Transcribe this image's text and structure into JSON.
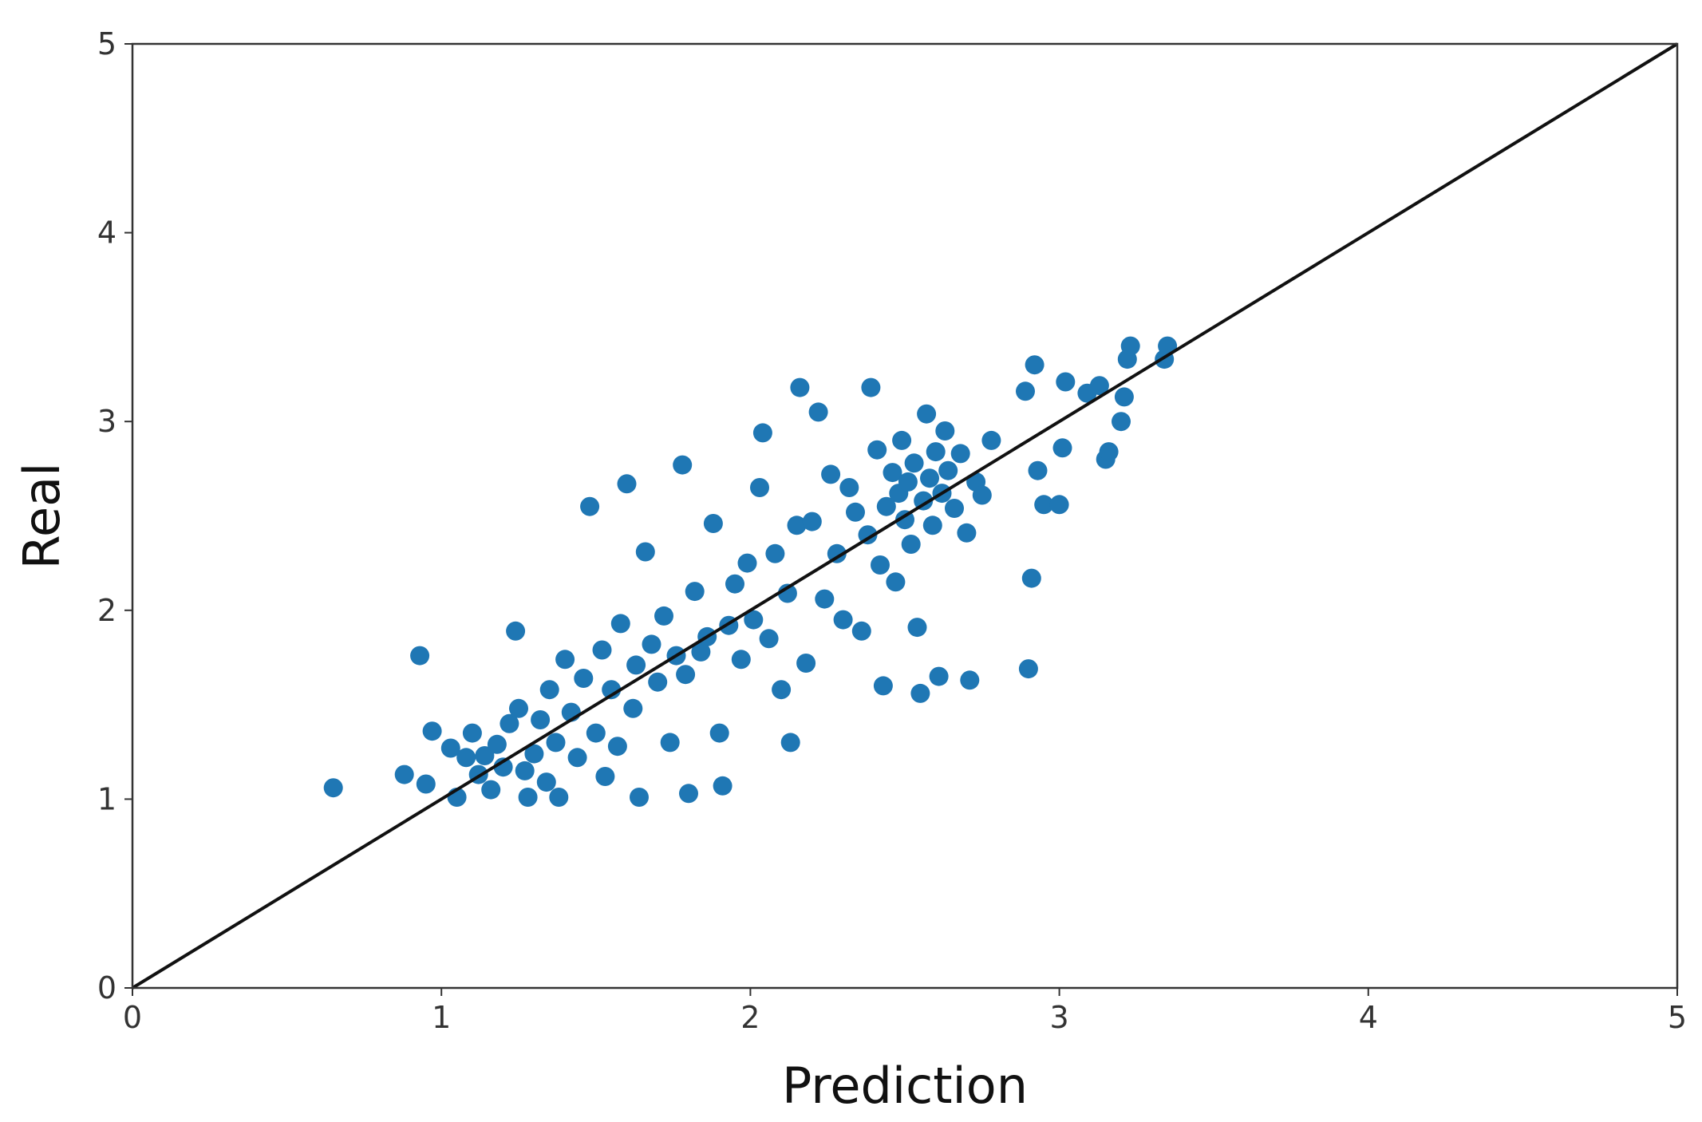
{
  "chart_data": {
    "type": "scatter",
    "title": "",
    "xlabel": "Prediction",
    "ylabel": "Real",
    "xlim": [
      0,
      5
    ],
    "ylim": [
      0,
      5
    ],
    "xticks": [
      "0",
      "1",
      "2",
      "3",
      "4",
      "5"
    ],
    "yticks": [
      "0",
      "1",
      "2",
      "3",
      "4",
      "5"
    ],
    "grid": false,
    "legend": "none",
    "point_color": "#1f77b4",
    "reference_line": {
      "x": [
        0,
        5
      ],
      "y": [
        0,
        5
      ],
      "color": "#111111"
    },
    "series": [
      {
        "points": [
          [
            0.65,
            1.06
          ],
          [
            0.88,
            1.13
          ],
          [
            0.93,
            1.76
          ],
          [
            0.95,
            1.08
          ],
          [
            0.97,
            1.36
          ],
          [
            1.03,
            1.27
          ],
          [
            1.05,
            1.01
          ],
          [
            1.08,
            1.22
          ],
          [
            1.1,
            1.35
          ],
          [
            1.12,
            1.13
          ],
          [
            1.14,
            1.23
          ],
          [
            1.16,
            1.05
          ],
          [
            1.18,
            1.29
          ],
          [
            1.2,
            1.17
          ],
          [
            1.22,
            1.4
          ],
          [
            1.24,
            1.89
          ],
          [
            1.25,
            1.48
          ],
          [
            1.27,
            1.15
          ],
          [
            1.28,
            1.01
          ],
          [
            1.3,
            1.24
          ],
          [
            1.32,
            1.42
          ],
          [
            1.34,
            1.09
          ],
          [
            1.35,
            1.58
          ],
          [
            1.37,
            1.3
          ],
          [
            1.38,
            1.01
          ],
          [
            1.4,
            1.74
          ],
          [
            1.42,
            1.46
          ],
          [
            1.44,
            1.22
          ],
          [
            1.46,
            1.64
          ],
          [
            1.48,
            2.55
          ],
          [
            1.5,
            1.35
          ],
          [
            1.52,
            1.79
          ],
          [
            1.53,
            1.12
          ],
          [
            1.55,
            1.58
          ],
          [
            1.57,
            1.28
          ],
          [
            1.58,
            1.93
          ],
          [
            1.6,
            2.67
          ],
          [
            1.62,
            1.48
          ],
          [
            1.63,
            1.71
          ],
          [
            1.64,
            1.01
          ],
          [
            1.66,
            2.31
          ],
          [
            1.68,
            1.82
          ],
          [
            1.7,
            1.62
          ],
          [
            1.72,
            1.97
          ],
          [
            1.74,
            1.3
          ],
          [
            1.76,
            1.76
          ],
          [
            1.78,
            2.77
          ],
          [
            1.79,
            1.66
          ],
          [
            1.8,
            1.03
          ],
          [
            1.82,
            2.1
          ],
          [
            1.84,
            1.78
          ],
          [
            1.86,
            1.86
          ],
          [
            1.88,
            2.46
          ],
          [
            1.9,
            1.35
          ],
          [
            1.91,
            1.07
          ],
          [
            1.93,
            1.92
          ],
          [
            1.95,
            2.14
          ],
          [
            1.97,
            1.74
          ],
          [
            1.99,
            2.25
          ],
          [
            2.01,
            1.95
          ],
          [
            2.03,
            2.65
          ],
          [
            2.04,
            2.94
          ],
          [
            2.06,
            1.85
          ],
          [
            2.08,
            2.3
          ],
          [
            2.1,
            1.58
          ],
          [
            2.12,
            2.09
          ],
          [
            2.13,
            1.3
          ],
          [
            2.15,
            2.45
          ],
          [
            2.16,
            3.18
          ],
          [
            2.18,
            1.72
          ],
          [
            2.2,
            2.47
          ],
          [
            2.22,
            3.05
          ],
          [
            2.24,
            2.06
          ],
          [
            2.26,
            2.72
          ],
          [
            2.28,
            2.3
          ],
          [
            2.3,
            1.95
          ],
          [
            2.32,
            2.65
          ],
          [
            2.34,
            2.52
          ],
          [
            2.36,
            1.89
          ],
          [
            2.38,
            2.4
          ],
          [
            2.39,
            3.18
          ],
          [
            2.41,
            2.85
          ],
          [
            2.42,
            2.24
          ],
          [
            2.43,
            1.6
          ],
          [
            2.44,
            2.55
          ],
          [
            2.46,
            2.73
          ],
          [
            2.47,
            2.15
          ],
          [
            2.48,
            2.62
          ],
          [
            2.49,
            2.9
          ],
          [
            2.5,
            2.48
          ],
          [
            2.51,
            2.68
          ],
          [
            2.52,
            2.35
          ],
          [
            2.53,
            2.78
          ],
          [
            2.54,
            1.91
          ],
          [
            2.55,
            1.56
          ],
          [
            2.56,
            2.58
          ],
          [
            2.57,
            3.04
          ],
          [
            2.58,
            2.7
          ],
          [
            2.59,
            2.45
          ],
          [
            2.6,
            2.84
          ],
          [
            2.61,
            1.65
          ],
          [
            2.62,
            2.62
          ],
          [
            2.63,
            2.95
          ],
          [
            2.64,
            2.74
          ],
          [
            2.66,
            2.54
          ],
          [
            2.68,
            2.83
          ],
          [
            2.7,
            2.41
          ],
          [
            2.71,
            1.63
          ],
          [
            2.73,
            2.68
          ],
          [
            2.75,
            2.61
          ],
          [
            2.78,
            2.9
          ],
          [
            2.89,
            3.16
          ],
          [
            2.9,
            1.69
          ],
          [
            2.91,
            2.17
          ],
          [
            2.92,
            3.3
          ],
          [
            2.93,
            2.74
          ],
          [
            2.95,
            2.56
          ],
          [
            3.0,
            2.56
          ],
          [
            3.01,
            2.86
          ],
          [
            3.02,
            3.21
          ],
          [
            3.09,
            3.15
          ],
          [
            3.13,
            3.19
          ],
          [
            3.15,
            2.8
          ],
          [
            3.16,
            2.84
          ],
          [
            3.2,
            3.0
          ],
          [
            3.21,
            3.13
          ],
          [
            3.22,
            3.33
          ],
          [
            3.23,
            3.4
          ],
          [
            3.34,
            3.33
          ],
          [
            3.35,
            3.4
          ]
        ]
      }
    ]
  }
}
